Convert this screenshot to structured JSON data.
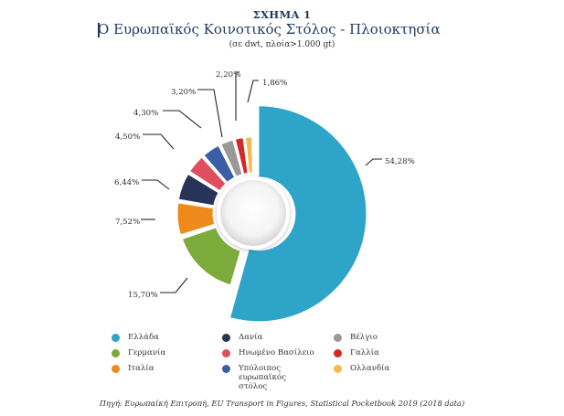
{
  "figure_label": "ΣΧΗΜΑ 1",
  "title": "Ο Ευρωπαϊκός Κοινοτικός Στόλος - Πλοιοκτησία",
  "subtitle": "(σε dwt, πλοία>1.000 gt)",
  "source": "Πηγή: Ευρωπαϊκή Επιτροπή, EU Transport in Figures, Statistical Pocketbook 2019 (2018 data)",
  "chart_data": {
    "type": "pie",
    "variant": "exploded donut",
    "slices": [
      {
        "name": "Ελλάδα",
        "value": 54.28,
        "label": "54,28%",
        "color": "#2ea4c9"
      },
      {
        "name": "Γερμανία",
        "value": 15.7,
        "label": "15,70%",
        "color": "#7aab3b"
      },
      {
        "name": "Ιταλία",
        "value": 7.52,
        "label": "7,52%",
        "color": "#ee8a1c"
      },
      {
        "name": "Δανία",
        "value": 6.44,
        "label": "6,44%",
        "color": "#273357"
      },
      {
        "name": "Ηνωμένο Βασίλειο",
        "value": 4.5,
        "label": "4,50%",
        "color": "#e04f5f"
      },
      {
        "name": "Υπόλοιπος ευρωπαϊκός στόλος",
        "value": 4.3,
        "label": "4,30%",
        "color": "#3a5ea5"
      },
      {
        "name": "Βέλγιο",
        "value": 3.2,
        "label": "3,20%",
        "color": "#999999"
      },
      {
        "name": "Γαλλία",
        "value": 2.2,
        "label": "2,20%",
        "color": "#d42a26"
      },
      {
        "name": "Ολλανδία",
        "value": 1.86,
        "label": "1,86%",
        "color": "#f6b84f"
      }
    ]
  },
  "legend": [
    {
      "label": "Ελλάδα",
      "color": "#2ea4c9"
    },
    {
      "label": "Δανία",
      "color": "#273357"
    },
    {
      "label": "Βέλγιο",
      "color": "#999999"
    },
    {
      "label": "Γερμανία",
      "color": "#7aab3b"
    },
    {
      "label": "Ηνωμένο Βασίλειο",
      "color": "#e04f5f"
    },
    {
      "label": "Γαλλία",
      "color": "#d42a26"
    },
    {
      "label": "Ιταλία",
      "color": "#ee8a1c"
    },
    {
      "label": "Υπόλοιπος ευρωπαϊκός στόλος",
      "color": "#3a5ea5"
    },
    {
      "label": "Ολλανδία",
      "color": "#f6b84f"
    }
  ]
}
